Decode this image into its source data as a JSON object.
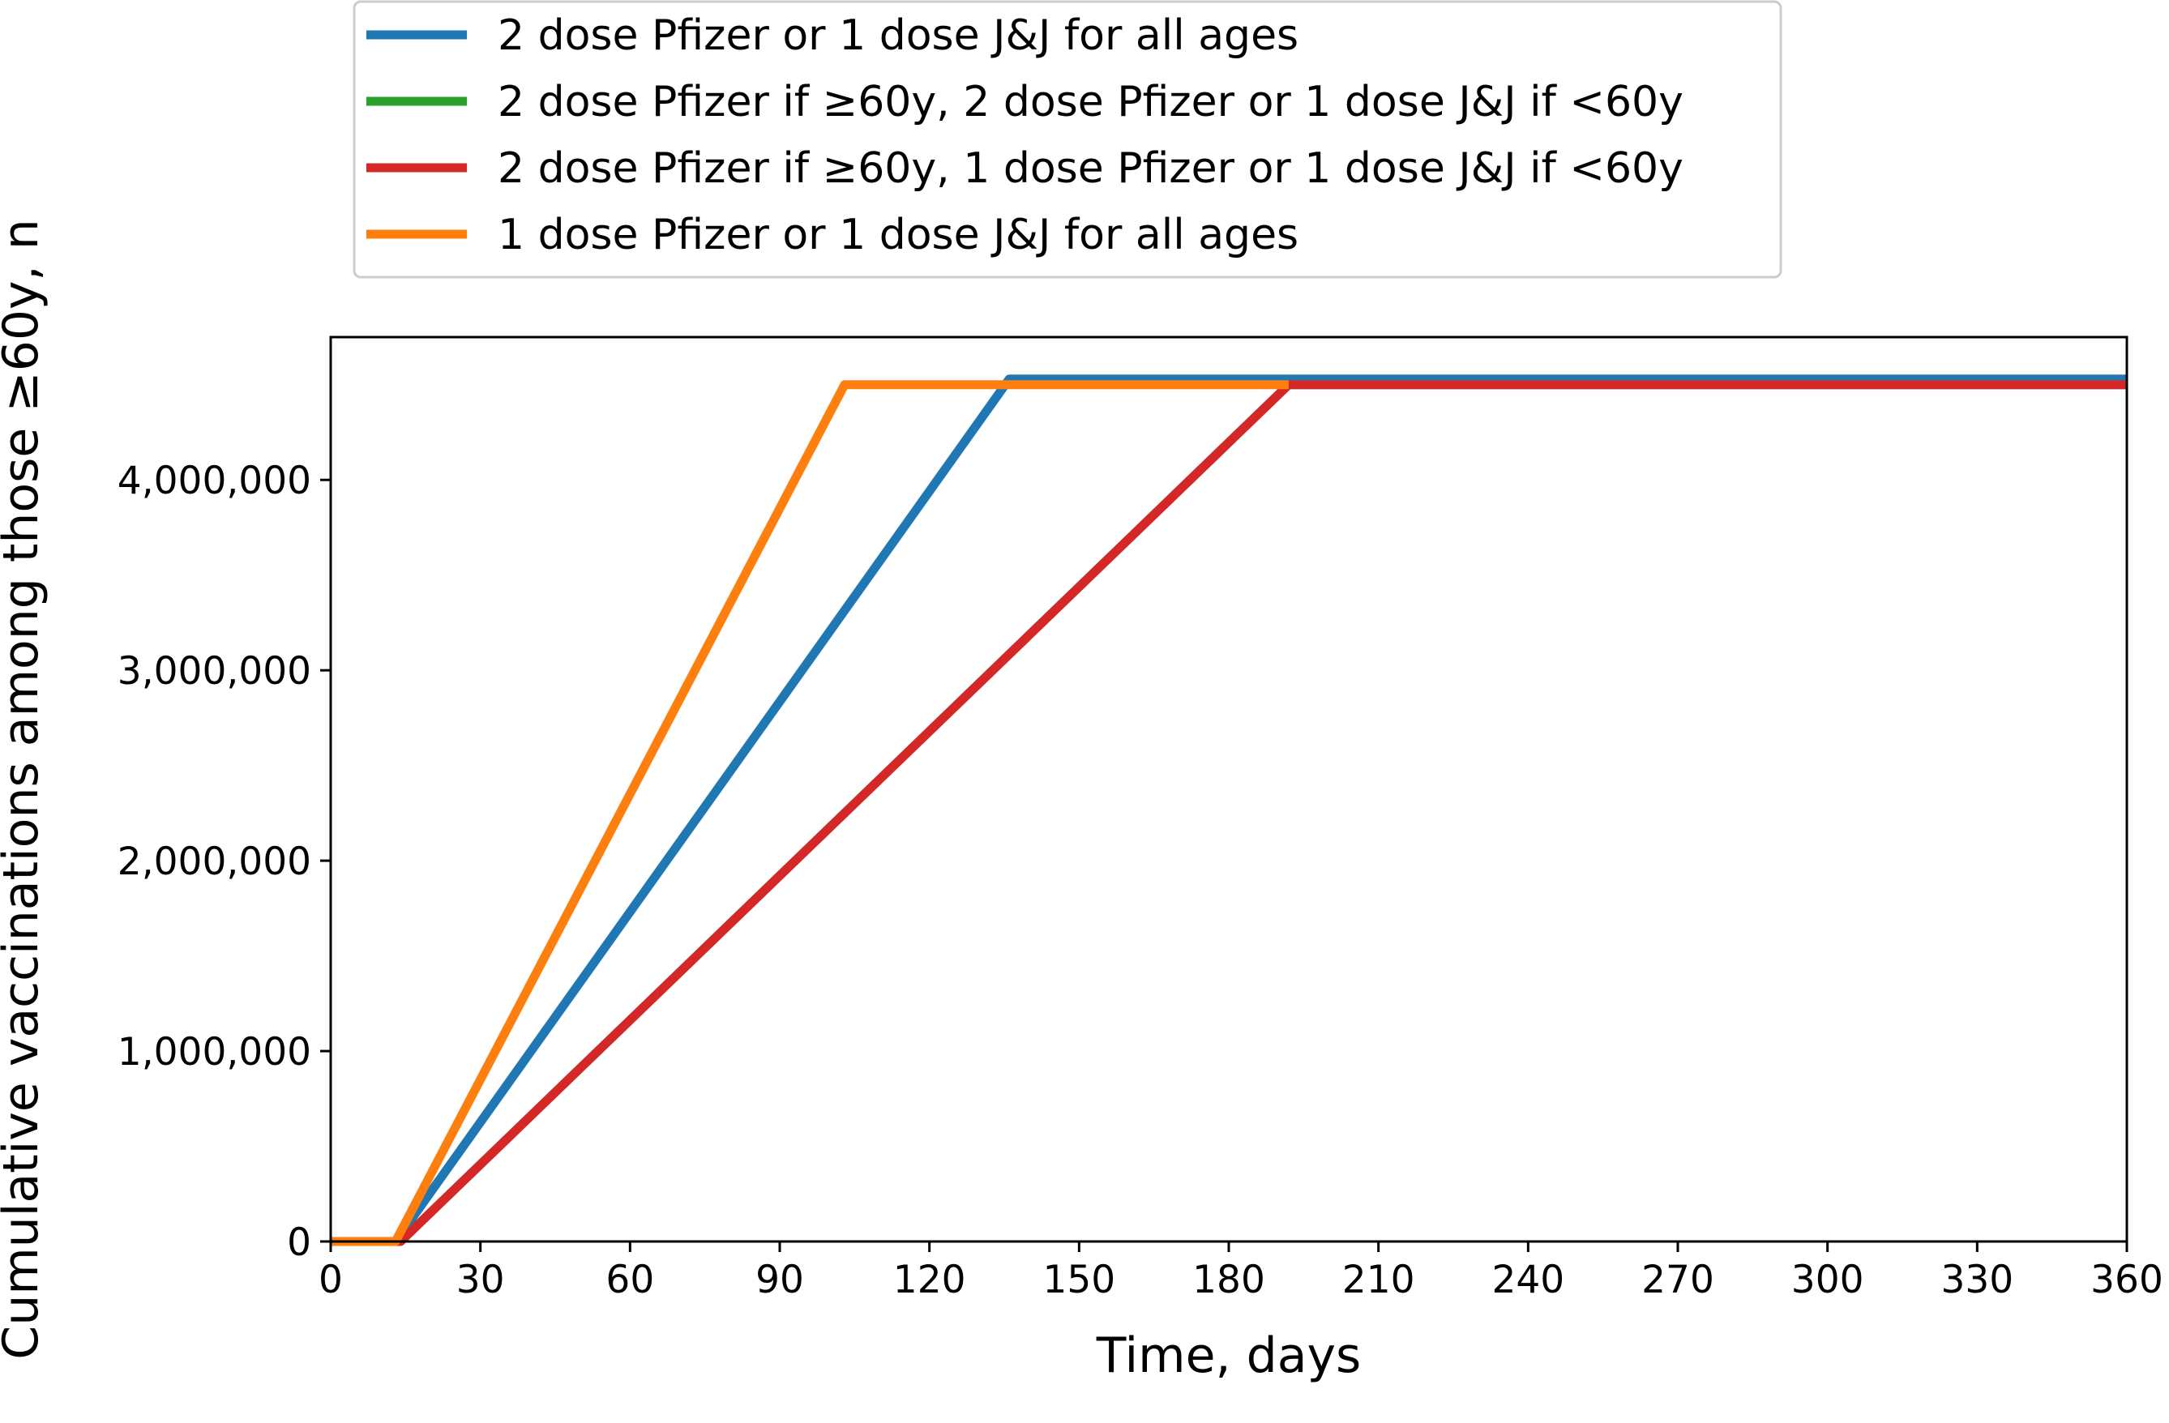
{
  "chart_data": {
    "type": "line",
    "xlabel": "Time, days",
    "ylabel": "Cumulative vaccinations among those ≥60y, n",
    "xlim": [
      0,
      360
    ],
    "ylim": [
      0,
      4750000
    ],
    "xticks": [
      0,
      30,
      60,
      90,
      120,
      150,
      180,
      210,
      240,
      270,
      300,
      330,
      360
    ],
    "xtick_labels": [
      "0",
      "30",
      "60",
      "90",
      "120",
      "150",
      "180",
      "210",
      "240",
      "270",
      "300",
      "330",
      "360"
    ],
    "yticks": [
      0,
      1000000,
      2000000,
      3000000,
      4000000
    ],
    "ytick_labels": [
      "0",
      "1,000,000",
      "2,000,000",
      "3,000,000",
      "4,000,000"
    ],
    "grid": false,
    "legend_position": "above plot, upper center",
    "series": [
      {
        "name": "2 dose Pfizer or 1 dose J&J for all ages",
        "color": "#1f77b4",
        "x": [
          0,
          13,
          136,
          360
        ],
        "y": [
          0,
          0,
          4530000,
          4530000
        ]
      },
      {
        "name": "2 dose Pfizer if ≥60y, 2 dose Pfizer or 1 dose J&J if <60y",
        "color": "#2ca02c",
        "x": [
          0,
          14,
          192,
          360
        ],
        "y": [
          0,
          0,
          4500000,
          4500000
        ]
      },
      {
        "name": "2 dose Pfizer if ≥60y, 1 dose Pfizer or 1 dose J&J if <60y",
        "color": "#d62728",
        "x": [
          0,
          14,
          192,
          360
        ],
        "y": [
          0,
          0,
          4500000,
          4500000
        ]
      },
      {
        "name": "1 dose Pfizer or 1 dose J&J for all ages",
        "color": "#ff7f0e",
        "x": [
          0,
          13,
          103,
          192
        ],
        "y": [
          0,
          0,
          4500000,
          4500000
        ]
      }
    ]
  }
}
